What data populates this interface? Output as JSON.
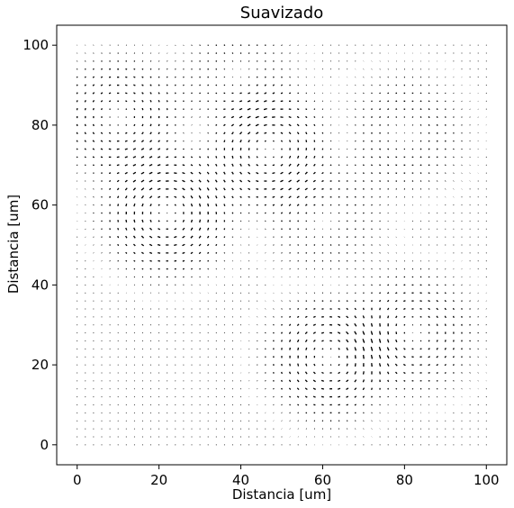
{
  "chart_data": {
    "type": "quiver",
    "title": "Suavizado",
    "xlabel": "Distancia [um]",
    "ylabel": "Distancia [um]",
    "xlim": [
      -5,
      105
    ],
    "ylim": [
      -5,
      105
    ],
    "xticks": [
      0,
      20,
      40,
      60,
      80,
      100
    ],
    "yticks": [
      0,
      20,
      40,
      60,
      80,
      100
    ],
    "grid": false,
    "grid_spacing": 2,
    "arrow_color": "#000000",
    "vortices": [
      {
        "x": 10,
        "y": 82,
        "strength": 1.0
      },
      {
        "x": 22,
        "y": 58,
        "strength": -1.4
      },
      {
        "x": 47,
        "y": 74,
        "strength": 1.2
      },
      {
        "x": 62,
        "y": 22,
        "strength": -1.3
      },
      {
        "x": 82,
        "y": 28,
        "strength": 1.0
      },
      {
        "x": 60,
        "y": 56,
        "strength": -0.6
      },
      {
        "x": 80,
        "y": 78,
        "strength": 0.7
      },
      {
        "x": 40,
        "y": 92,
        "strength": -0.6
      }
    ]
  }
}
